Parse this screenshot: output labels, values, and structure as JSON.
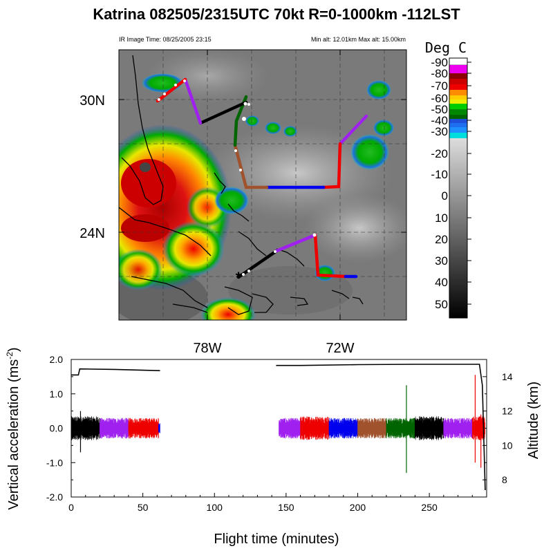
{
  "title": "Katrina 082505/2315UTC 70kt  R=0-1000km -112LST",
  "map": {
    "ir_time_label": "IR Image Time: 08/25/2005 23:15",
    "alt_label": "Min alt: 12.01km  Max alt: 15.00km",
    "lat_labels": [
      {
        "label": "30N",
        "lat": 30
      },
      {
        "label": "24N",
        "lat": 24
      }
    ],
    "lon_labels": [
      {
        "label": "78W",
        "lon": -78
      },
      {
        "label": "72W",
        "lon": -72
      }
    ],
    "lon_range": [
      -82,
      -69
    ],
    "lat_range": [
      20,
      32.5
    ],
    "storm_marker": "*",
    "storm_position": {
      "lon": -76.5,
      "lat": 21.9
    }
  },
  "colorbar": {
    "title": "Deg C",
    "labels": [
      "-90",
      "-80",
      "-70",
      "-60",
      "-50",
      "-40",
      "-30",
      "-20",
      "-10",
      "0",
      "10",
      "20",
      "30",
      "40",
      "50"
    ],
    "colors": {
      "white": "#ffffff",
      "magenta": "#ee00ee",
      "dark_red": "#8b0000",
      "red": "#ee0000",
      "orange": "#ff8c00",
      "yellow": "#eeee00",
      "green": "#00bb00",
      "dark_green": "#006400",
      "blue": "#1e4fd8",
      "light_blue": "#1e90ff",
      "cyan": "#00dddd"
    }
  },
  "track_colors": [
    "#000000",
    "#a020f0",
    "#ee0000",
    "#0000ee",
    "#a0522d",
    "#006400"
  ],
  "chart_data": {
    "type": "line",
    "xlabel": "Flight time (minutes)",
    "ylabel": "Vertical acceleration (ms-2)",
    "y2label": "Altitude (km)",
    "xlim": [
      0,
      290
    ],
    "ylim": [
      -2.0,
      2.0
    ],
    "y2lim": [
      7,
      15
    ],
    "x_ticks": [
      "0",
      "50",
      "100",
      "150",
      "200",
      "250"
    ],
    "y_ticks": [
      "2.0",
      "1.0",
      "0.0",
      "-1.0",
      "-2.0"
    ],
    "y2_ticks": [
      "8",
      "10",
      "12",
      "14"
    ],
    "altitude_series": [
      {
        "x": [
          0,
          5,
          6,
          30,
          62
        ],
        "y": [
          14.1,
          14.1,
          14.45,
          14.42,
          14.35
        ]
      },
      {
        "x": [
          143,
          160,
          200,
          240,
          272,
          285,
          287,
          289
        ],
        "y": [
          14.65,
          14.65,
          14.7,
          14.72,
          14.72,
          14.72,
          13.5,
          7.4
        ]
      }
    ],
    "acceleration_segments": [
      {
        "x": [
          0,
          20
        ],
        "color": "#000000",
        "amp": 0.35
      },
      {
        "x": [
          20,
          40
        ],
        "color": "#a020f0",
        "amp": 0.3
      },
      {
        "x": [
          40,
          61
        ],
        "color": "#ee0000",
        "amp": 0.3
      },
      {
        "x": [
          61,
          62
        ],
        "color": "#0000ee",
        "amp": 0.15
      },
      {
        "x": [
          145,
          160
        ],
        "color": "#a020f0",
        "amp": 0.3
      },
      {
        "x": [
          160,
          180
        ],
        "color": "#ee0000",
        "amp": 0.35
      },
      {
        "x": [
          180,
          200
        ],
        "color": "#0000ee",
        "amp": 0.3
      },
      {
        "x": [
          200,
          220
        ],
        "color": "#a0522d",
        "amp": 0.3
      },
      {
        "x": [
          220,
          240
        ],
        "color": "#006400",
        "amp": 0.3
      },
      {
        "x": [
          240,
          260
        ],
        "color": "#000000",
        "amp": 0.35
      },
      {
        "x": [
          260,
          280
        ],
        "color": "#a020f0",
        "amp": 0.3
      },
      {
        "x": [
          280,
          289
        ],
        "color": "#ee0000",
        "amp": 0.35
      }
    ],
    "acceleration_spikes": [
      {
        "x": 6.5,
        "min": -0.7,
        "max": 0.5,
        "color": "#000000"
      },
      {
        "x": 234,
        "min": -1.3,
        "max": 1.25,
        "color": "#006400"
      },
      {
        "x": 282,
        "min": -1.0,
        "max": 1.55,
        "color": "#ee0000"
      },
      {
        "x": 286,
        "min": -1.15,
        "max": 0.4,
        "color": "#ee0000"
      }
    ]
  }
}
